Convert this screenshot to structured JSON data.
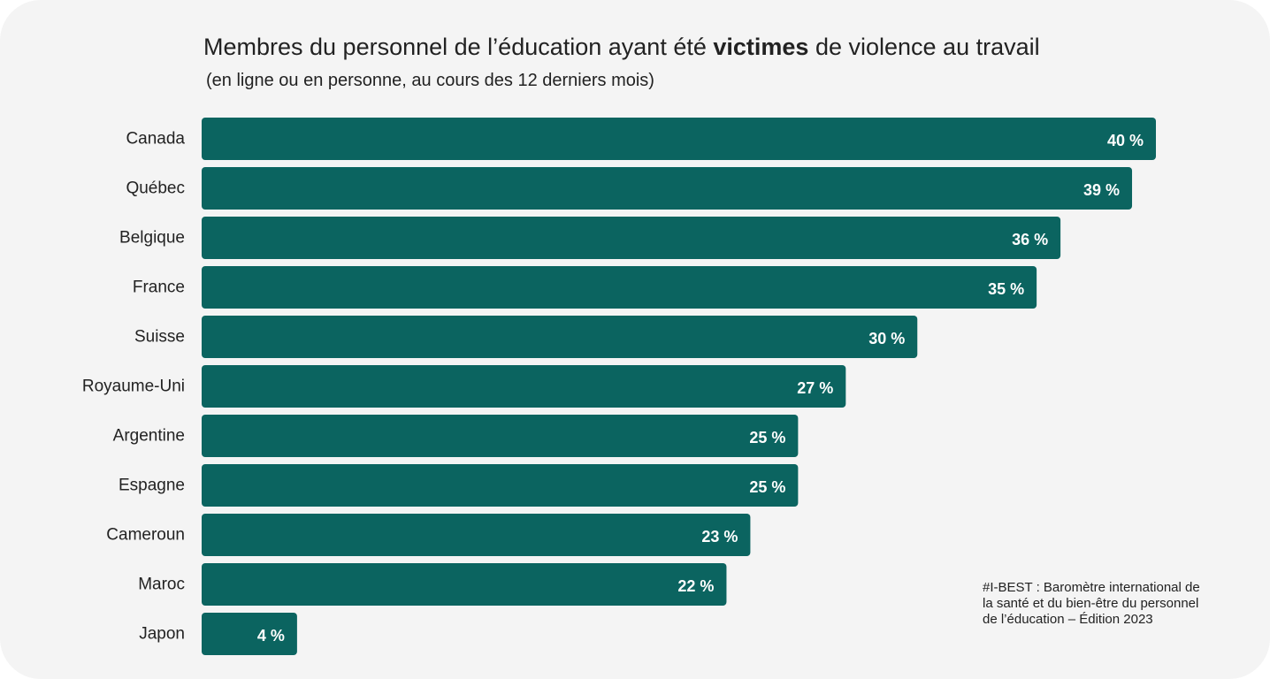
{
  "header": {
    "title_before": "Membres du personnel de l’éducation ayant été ",
    "title_bold": "victimes",
    "title_after": " de violence au travail",
    "subtitle": "(en ligne ou en personne, au cours des 12 derniers mois)"
  },
  "source": {
    "lines": [
      "#I-BEST : Baromètre international de",
      "la santé et du bien-être du personnel",
      "de l’éducation – Édition 2023"
    ]
  },
  "colors": {
    "bar": "#0b6460",
    "background": "#f4f4f4"
  },
  "chart_data": {
    "type": "bar",
    "orientation": "horizontal",
    "categories": [
      "Canada",
      "Québec",
      "Belgique",
      "France",
      "Suisse",
      "Royaume-Uni",
      "Argentine",
      "Espagne",
      "Cameroun",
      "Maroc",
      "Japon"
    ],
    "values": [
      40,
      39,
      36,
      35,
      30,
      27,
      25,
      25,
      23,
      22,
      4
    ],
    "value_labels": [
      "40 %",
      "39 %",
      "36 %",
      "35 %",
      "30 %",
      "27 %",
      "25 %",
      "25 %",
      "23 %",
      "22 %",
      "4 %"
    ],
    "unit": "%",
    "xlim": [
      0,
      40
    ],
    "grid": false,
    "legend": "none"
  }
}
